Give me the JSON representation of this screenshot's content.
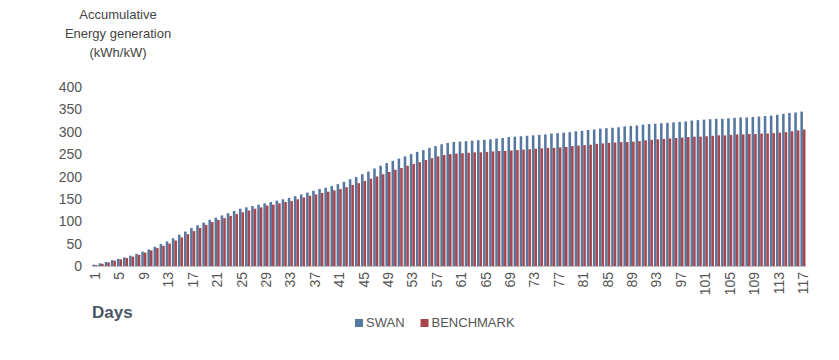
{
  "chart_data": {
    "type": "bar",
    "y_label": [
      "Accumulative",
      "Energy generation",
      "(kWh/kW)"
    ],
    "x_label": "Days",
    "categories": [
      "1",
      null,
      null,
      null,
      "5",
      null,
      null,
      null,
      "9",
      null,
      null,
      null,
      "13",
      null,
      null,
      null,
      "17",
      null,
      null,
      null,
      "21",
      null,
      null,
      null,
      "25",
      null,
      null,
      null,
      "29",
      null,
      null,
      null,
      "33",
      null,
      null,
      null,
      "37",
      null,
      null,
      null,
      "41",
      null,
      null,
      null,
      "45",
      null,
      null,
      null,
      "49",
      null,
      null,
      null,
      "53",
      null,
      null,
      null,
      "57",
      null,
      null,
      null,
      "61",
      null,
      null,
      null,
      "65",
      null,
      null,
      null,
      "69",
      null,
      null,
      null,
      "73",
      null,
      null,
      null,
      "77",
      null,
      null,
      null,
      "81",
      null,
      null,
      null,
      "85",
      null,
      null,
      null,
      "89",
      null,
      null,
      null,
      "93",
      null,
      null,
      null,
      "97",
      null,
      null,
      null,
      "101",
      null,
      null,
      null,
      "105",
      null,
      null,
      null,
      "109",
      null,
      null,
      null,
      "113",
      null,
      null,
      null,
      "117"
    ],
    "series": [
      {
        "name": "SWAN",
        "color": "#56789f",
        "values": [
          3,
          6,
          9,
          13,
          16,
          19,
          23,
          27,
          32,
          37,
          43,
          49,
          55,
          62,
          70,
          77,
          85,
          91,
          97,
          103,
          108,
          113,
          118,
          123,
          128,
          131,
          134,
          137,
          140,
          143,
          146,
          149,
          152,
          156,
          160,
          164,
          168,
          172,
          175,
          179,
          183,
          188,
          194,
          199,
          205,
          211,
          218,
          224,
          230,
          235,
          240,
          245,
          250,
          255,
          259,
          264,
          268,
          272,
          275,
          277,
          278,
          279,
          280,
          281,
          282,
          283,
          285,
          286,
          288,
          289,
          290,
          291,
          292,
          293,
          294,
          296,
          297,
          298,
          299,
          301,
          302,
          304,
          305,
          307,
          308,
          309,
          310,
          312,
          313,
          314,
          316,
          317,
          318,
          319,
          320,
          321,
          322,
          323,
          325,
          326,
          327,
          328,
          329,
          329,
          330,
          331,
          332,
          332,
          333,
          334,
          335,
          336,
          338,
          340,
          342,
          343,
          345
        ]
      },
      {
        "name": "BENCHMARK",
        "color": "#a8464c",
        "values": [
          2,
          5,
          8,
          12,
          15,
          18,
          21,
          25,
          30,
          35,
          40,
          45,
          50,
          57,
          64,
          71,
          78,
          85,
          92,
          98,
          103,
          107,
          112,
          116,
          120,
          124,
          128,
          131,
          135,
          137,
          140,
          143,
          145,
          149,
          153,
          157,
          160,
          163,
          166,
          169,
          172,
          176,
          181,
          185,
          190,
          195,
          200,
          205,
          210,
          215,
          219,
          224,
          228,
          232,
          237,
          241,
          245,
          248,
          250,
          251,
          252,
          253,
          254,
          254,
          255,
          256,
          257,
          257,
          258,
          259,
          260,
          261,
          262,
          263,
          264,
          264,
          265,
          266,
          268,
          269,
          270,
          271,
          273,
          274,
          275,
          276,
          277,
          277,
          278,
          279,
          281,
          282,
          283,
          284,
          285,
          286,
          287,
          288,
          289,
          289,
          290,
          291,
          292,
          292,
          293,
          294,
          294,
          295,
          295,
          296,
          296,
          297,
          298,
          299,
          301,
          303,
          305
        ]
      }
    ],
    "ylim": [
      0,
      400
    ],
    "yticks": [
      0,
      50,
      100,
      150,
      200,
      250,
      300,
      350,
      400
    ],
    "grid": false,
    "legend": "bottom"
  }
}
